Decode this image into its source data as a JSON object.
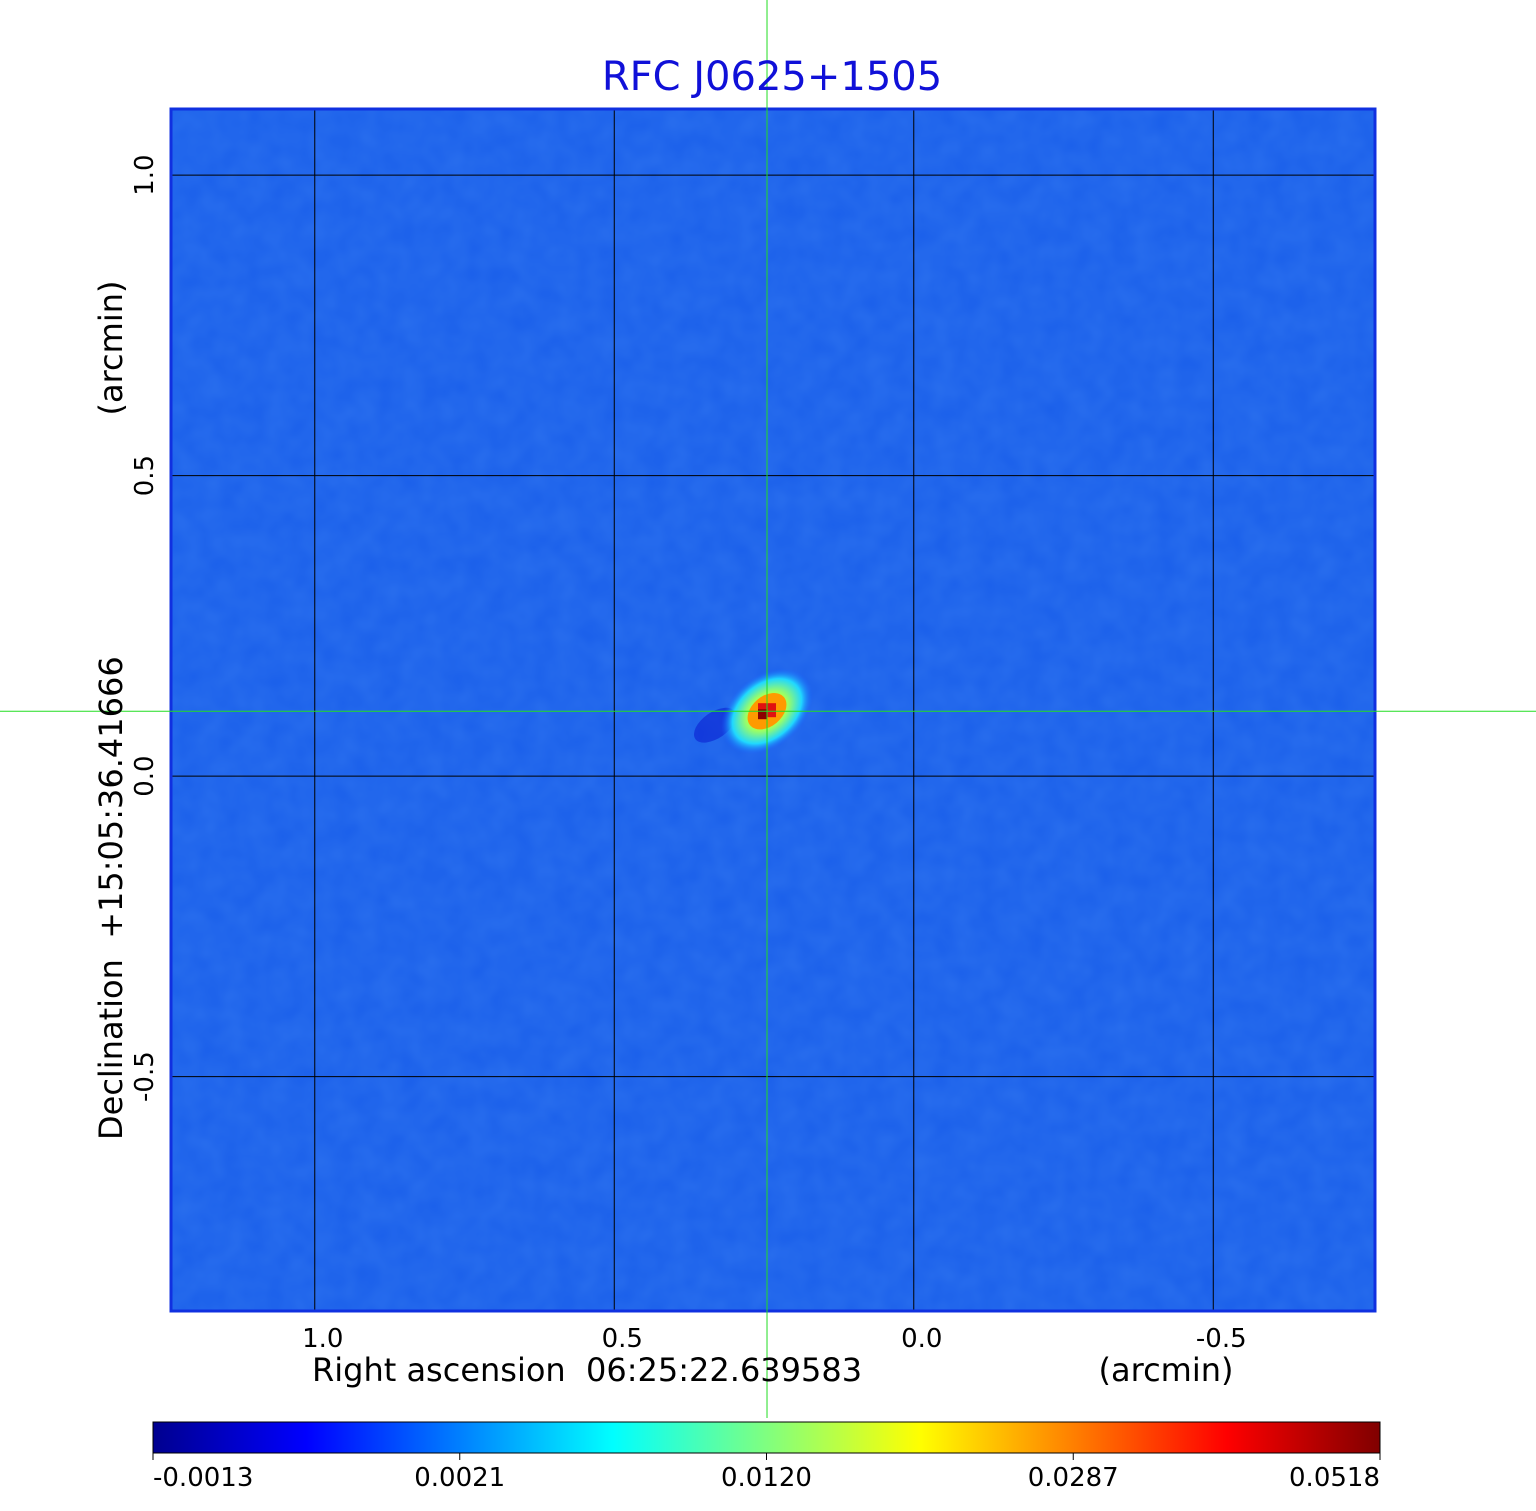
{
  "chart_data": {
    "type": "heatmap",
    "title": "RFC J0625+1505",
    "xlabel": "Right ascension  06:25:22.639583",
    "xunit": "(arcmin)",
    "ylabel": "Declination  +15:05:36.41666",
    "yunit": "(arcmin)",
    "x_axis_reversed": true,
    "xlim": [
      1.24,
      -0.77
    ],
    "ylim": [
      -0.89,
      1.11
    ],
    "x_ticks": [
      1.0,
      0.5,
      0.0,
      -0.5
    ],
    "x_tick_labels": [
      "1.0",
      "0.5",
      "0.0",
      "-0.5"
    ],
    "y_ticks": [
      1.0,
      0.5,
      0.0,
      -0.5
    ],
    "y_tick_labels": [
      "1.0",
      "0.5",
      "0.0",
      "-0.5"
    ],
    "grid": true,
    "crosshair": {
      "x": 0.245,
      "y": 0.108,
      "color": "#22dd22"
    },
    "sources": [
      {
        "x": 0.245,
        "y": 0.108,
        "peak": 0.0518
      }
    ],
    "colormap": "jet",
    "colorbar": {
      "location": "bottom",
      "tick_labels": [
        "-0.0013",
        "0.0021",
        "0.0120",
        "0.0287",
        "0.0518"
      ]
    }
  }
}
